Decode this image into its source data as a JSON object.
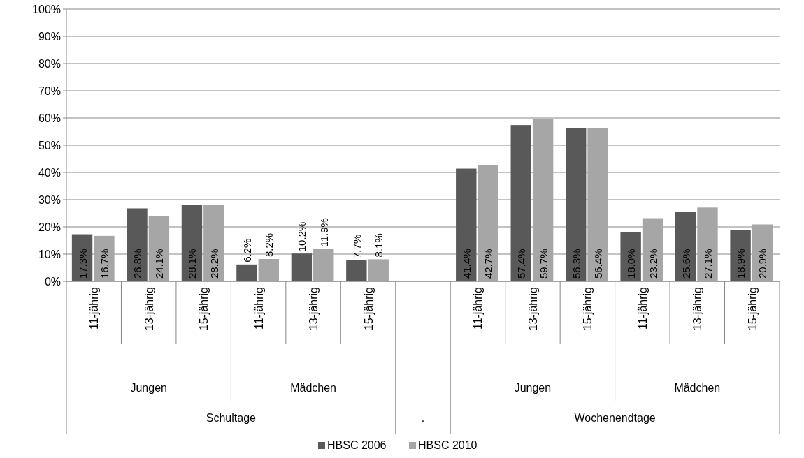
{
  "chart_data": {
    "type": "bar",
    "categories": [
      "11-jährig",
      "13-jährig",
      "15-jährig",
      "11-jährig",
      "13-jährig",
      "15-jährig",
      null,
      "11-jährig",
      "13-jährig",
      "15-jährig",
      "11-jährig",
      "13-jährig",
      "15-jährig"
    ],
    "series": [
      {
        "name": "HBSC 2006",
        "color": "#595959",
        "values": [
          17.3,
          26.8,
          28.1,
          6.2,
          10.2,
          7.7,
          null,
          41.4,
          57.4,
          56.3,
          18.0,
          25.6,
          18.9
        ],
        "value_labels": [
          "17.3%",
          "26.8%",
          "28.1%",
          "6.2%",
          "10.2%",
          "7.7%",
          null,
          "41.4%",
          "57.4%",
          "56.3%",
          "18.0%",
          "25.6%",
          "18.9%"
        ]
      },
      {
        "name": "HBSC 2010",
        "color": "#a6a6a6",
        "values": [
          16.7,
          24.1,
          28.2,
          8.2,
          11.9,
          8.1,
          null,
          42.7,
          59.7,
          56.4,
          23.2,
          27.1,
          20.9
        ],
        "value_labels": [
          "16.7%",
          "24.1%",
          "28.2%",
          "8.2%",
          "11.9%",
          "8.1%",
          null,
          "42.7%",
          "59.7%",
          "56.4%",
          "23.2%",
          "27.1%",
          "20.9%"
        ]
      }
    ],
    "annotations": [
      "Jungen",
      "Mädchen",
      "Jungen",
      "Mädchen",
      "Schultage",
      ".",
      "Wochenendtage"
    ],
    "ylim": [
      0,
      100
    ],
    "yticks": [
      {
        "value": 0,
        "label": "0%"
      },
      {
        "value": 10,
        "label": "10%"
      },
      {
        "value": 20,
        "label": "20%"
      },
      {
        "value": 30,
        "label": "30%"
      },
      {
        "value": 40,
        "label": "40%"
      },
      {
        "value": 50,
        "label": "50%"
      },
      {
        "value": 60,
        "label": "60%"
      },
      {
        "value": 70,
        "label": "70%"
      },
      {
        "value": 80,
        "label": "80%"
      },
      {
        "value": 90,
        "label": "90%"
      },
      {
        "value": 100,
        "label": "100%"
      }
    ],
    "grid": "y",
    "legend": "bottom"
  }
}
